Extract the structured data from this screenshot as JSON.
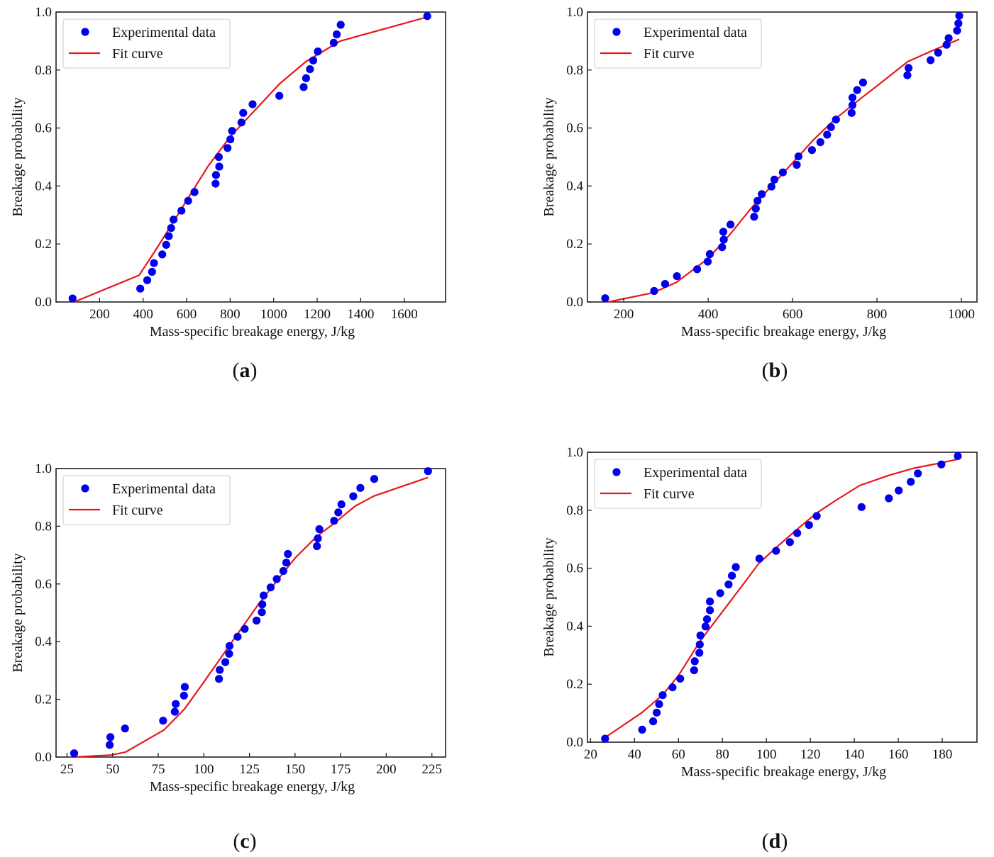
{
  "colors": {
    "points": "#0000ee",
    "fit_curve": "#e8161b",
    "axes": "#222222",
    "legend_border": "#d6d6d6"
  },
  "chart_data": [
    {
      "id": "a",
      "type": "scatter",
      "panel_label": "(a)",
      "panel_letter": "a",
      "xlabel": "Mass-specific breakage energy, J/kg",
      "ylabel": "Breakage probability",
      "xlim": [
        0,
        1790
      ],
      "ylim": [
        0,
        1.0
      ],
      "xticks": [
        200,
        400,
        600,
        800,
        1000,
        1200,
        1400,
        1600
      ],
      "xtick_labels": [
        "200",
        "400",
        "600",
        "800",
        "1000",
        "1200",
        "1400",
        "1600"
      ],
      "yticks": [
        0.0,
        0.2,
        0.4,
        0.6,
        0.8,
        1.0
      ],
      "ytick_labels": [
        "0.0",
        "0.2",
        "0.4",
        "0.6",
        "0.8",
        "1.0"
      ],
      "grid": false,
      "legend": {
        "position": "top-left",
        "entries": [
          "Experimental data",
          "Fit curve"
        ]
      },
      "series": [
        {
          "name": "Experimental data",
          "kind": "scatter",
          "points": [
            [
              76,
              0.012
            ],
            [
              387,
              0.046
            ],
            [
              419,
              0.075
            ],
            [
              441,
              0.104
            ],
            [
              450,
              0.134
            ],
            [
              488,
              0.164
            ],
            [
              506,
              0.197
            ],
            [
              518,
              0.227
            ],
            [
              529,
              0.255
            ],
            [
              540,
              0.284
            ],
            [
              576,
              0.315
            ],
            [
              607,
              0.349
            ],
            [
              636,
              0.379
            ],
            [
              733,
              0.408
            ],
            [
              735,
              0.438
            ],
            [
              750,
              0.467
            ],
            [
              748,
              0.5
            ],
            [
              788,
              0.531
            ],
            [
              801,
              0.561
            ],
            [
              809,
              0.59
            ],
            [
              852,
              0.619
            ],
            [
              860,
              0.652
            ],
            [
              903,
              0.682
            ],
            [
              1026,
              0.711
            ],
            [
              1138,
              0.741
            ],
            [
              1149,
              0.772
            ],
            [
              1167,
              0.803
            ],
            [
              1182,
              0.833
            ],
            [
              1203,
              0.864
            ],
            [
              1276,
              0.894
            ],
            [
              1290,
              0.923
            ],
            [
              1308,
              0.956
            ],
            [
              1706,
              0.986
            ]
          ]
        },
        {
          "name": "Fit curve",
          "kind": "line",
          "points": [
            [
              83,
              0.0
            ],
            [
              381,
              0.092
            ],
            [
              450,
              0.17
            ],
            [
              530,
              0.265
            ],
            [
              600,
              0.35
            ],
            [
              700,
              0.47
            ],
            [
              800,
              0.57
            ],
            [
              900,
              0.65
            ],
            [
              1028,
              0.753
            ],
            [
              1150,
              0.83
            ],
            [
              1306,
              0.9
            ],
            [
              1706,
              0.983
            ]
          ]
        }
      ]
    },
    {
      "id": "b",
      "type": "scatter",
      "panel_label": "(b)",
      "panel_letter": "b",
      "xlabel": "Mass-specific breakage energy, J/kg",
      "ylabel": "Breakage probability",
      "xlim": [
        114,
        1037
      ],
      "ylim": [
        0,
        1.0
      ],
      "xticks": [
        200,
        400,
        600,
        800,
        1000
      ],
      "xtick_labels": [
        "200",
        "400",
        "600",
        "800",
        "1000"
      ],
      "yticks": [
        0.0,
        0.2,
        0.4,
        0.6,
        0.8,
        1.0
      ],
      "ytick_labels": [
        "0.0",
        "0.2",
        "0.4",
        "0.6",
        "0.8",
        "1.0"
      ],
      "grid": false,
      "legend": {
        "position": "top-left",
        "entries": [
          "Experimental data",
          "Fit curve"
        ]
      },
      "series": [
        {
          "name": "Experimental data",
          "kind": "scatter",
          "points": [
            [
              156,
              0.013
            ],
            [
              272,
              0.038
            ],
            [
              298,
              0.062
            ],
            [
              326,
              0.089
            ],
            [
              374,
              0.113
            ],
            [
              399,
              0.139
            ],
            [
              404,
              0.165
            ],
            [
              433,
              0.189
            ],
            [
              437,
              0.215
            ],
            [
              436,
              0.242
            ],
            [
              453,
              0.267
            ],
            [
              509,
              0.294
            ],
            [
              513,
              0.322
            ],
            [
              517,
              0.349
            ],
            [
              527,
              0.372
            ],
            [
              550,
              0.398
            ],
            [
              557,
              0.422
            ],
            [
              577,
              0.447
            ],
            [
              610,
              0.473
            ],
            [
              614,
              0.502
            ],
            [
              646,
              0.524
            ],
            [
              666,
              0.551
            ],
            [
              682,
              0.577
            ],
            [
              691,
              0.603
            ],
            [
              703,
              0.629
            ],
            [
              740,
              0.652
            ],
            [
              742,
              0.679
            ],
            [
              742,
              0.705
            ],
            [
              753,
              0.731
            ],
            [
              767,
              0.757
            ],
            [
              872,
              0.782
            ],
            [
              875,
              0.807
            ],
            [
              927,
              0.834
            ],
            [
              945,
              0.86
            ],
            [
              965,
              0.887
            ],
            [
              970,
              0.91
            ],
            [
              990,
              0.936
            ],
            [
              993,
              0.961
            ],
            [
              995,
              0.987
            ]
          ]
        },
        {
          "name": "Fit curve",
          "kind": "line",
          "points": [
            [
              163,
              0.0
            ],
            [
              270,
              0.032
            ],
            [
              325,
              0.068
            ],
            [
              400,
              0.15
            ],
            [
              450,
              0.23
            ],
            [
              500,
              0.32
            ],
            [
              550,
              0.4
            ],
            [
              600,
              0.48
            ],
            [
              650,
              0.56
            ],
            [
              700,
              0.63
            ],
            [
              760,
              0.7
            ],
            [
              800,
              0.745
            ],
            [
              873,
              0.829
            ],
            [
              930,
              0.866
            ],
            [
              995,
              0.906
            ]
          ]
        }
      ]
    },
    {
      "id": "c",
      "type": "scatter",
      "panel_label": "(c)",
      "panel_letter": "c",
      "xlabel": "Mass-specific breakage energy, J/kg",
      "ylabel": "Breakage probability",
      "xlim": [
        19,
        232.5
      ],
      "ylim": [
        0,
        1.0
      ],
      "xticks": [
        25,
        50,
        75,
        100,
        125,
        150,
        175,
        200,
        225
      ],
      "xtick_labels": [
        "25",
        "50",
        "75",
        "100",
        "125",
        "150",
        "175",
        "200",
        "225"
      ],
      "yticks": [
        0.0,
        0.2,
        0.4,
        0.6,
        0.8,
        1.0
      ],
      "ytick_labels": [
        "0.0",
        "0.2",
        "0.4",
        "0.6",
        "0.8",
        "1.0"
      ],
      "grid": false,
      "legend": {
        "position": "top-left",
        "entries": [
          "Experimental data",
          "Fit curve"
        ]
      },
      "series": [
        {
          "name": "Experimental data",
          "kind": "scatter",
          "points": [
            [
              28.9,
              0.013
            ],
            [
              48.4,
              0.042
            ],
            [
              48.8,
              0.069
            ],
            [
              56.8,
              0.099
            ],
            [
              77.7,
              0.126
            ],
            [
              84.1,
              0.157
            ],
            [
              84.6,
              0.184
            ],
            [
              89.1,
              0.213
            ],
            [
              89.6,
              0.243
            ],
            [
              108.3,
              0.271
            ],
            [
              108.7,
              0.302
            ],
            [
              111.8,
              0.329
            ],
            [
              113.9,
              0.358
            ],
            [
              114.1,
              0.385
            ],
            [
              118.5,
              0.417
            ],
            [
              122.4,
              0.444
            ],
            [
              128.9,
              0.473
            ],
            [
              131.8,
              0.502
            ],
            [
              132.0,
              0.529
            ],
            [
              132.8,
              0.56
            ],
            [
              136.6,
              0.588
            ],
            [
              140.0,
              0.617
            ],
            [
              143.6,
              0.645
            ],
            [
              145.2,
              0.674
            ],
            [
              146.1,
              0.704
            ],
            [
              162.0,
              0.731
            ],
            [
              162.5,
              0.758
            ],
            [
              163.3,
              0.79
            ],
            [
              171.4,
              0.819
            ],
            [
              173.7,
              0.848
            ],
            [
              175.4,
              0.876
            ],
            [
              181.9,
              0.904
            ],
            [
              185.8,
              0.933
            ],
            [
              193.4,
              0.964
            ],
            [
              222.9,
              0.991
            ]
          ]
        },
        {
          "name": "Fit curve",
          "kind": "line",
          "points": [
            [
              29,
              0.0
            ],
            [
              49,
              0.007
            ],
            [
              57,
              0.017
            ],
            [
              78,
              0.093
            ],
            [
              89.5,
              0.167
            ],
            [
              100,
              0.26
            ],
            [
              110,
              0.35
            ],
            [
              120,
              0.44
            ],
            [
              130,
              0.53
            ],
            [
              140,
              0.61
            ],
            [
              150,
              0.69
            ],
            [
              162,
              0.765
            ],
            [
              171.4,
              0.81
            ],
            [
              183,
              0.87
            ],
            [
              193.3,
              0.905
            ],
            [
              222.9,
              0.969
            ]
          ]
        }
      ]
    },
    {
      "id": "d",
      "type": "scatter",
      "panel_label": "(d)",
      "panel_letter": "d",
      "xlabel": "Mass-specific breakage energy, J/kg",
      "ylabel": "Breakage probability",
      "xlim": [
        18.6,
        195.8
      ],
      "ylim": [
        0,
        1.0
      ],
      "xticks": [
        20,
        40,
        60,
        80,
        100,
        120,
        140,
        160,
        180
      ],
      "xtick_labels": [
        "20",
        "40",
        "60",
        "80",
        "100",
        "120",
        "140",
        "160",
        "180"
      ],
      "yticks": [
        0.0,
        0.2,
        0.4,
        0.6,
        0.8,
        1.0
      ],
      "ytick_labels": [
        "0.0",
        "0.2",
        "0.4",
        "0.6",
        "0.8",
        "1.0"
      ],
      "grid": false,
      "legend": {
        "position": "top-left",
        "entries": [
          "Experimental data",
          "Fit curve"
        ]
      },
      "series": [
        {
          "name": "Experimental data",
          "kind": "scatter",
          "points": [
            [
              26.6,
              0.012
            ],
            [
              43.5,
              0.043
            ],
            [
              48.5,
              0.072
            ],
            [
              50.1,
              0.102
            ],
            [
              51.2,
              0.131
            ],
            [
              52.8,
              0.162
            ],
            [
              57.3,
              0.189
            ],
            [
              60.8,
              0.219
            ],
            [
              67.1,
              0.248
            ],
            [
              67.4,
              0.279
            ],
            [
              69.5,
              0.308
            ],
            [
              69.7,
              0.337
            ],
            [
              70.0,
              0.368
            ],
            [
              72.3,
              0.399
            ],
            [
              73.0,
              0.424
            ],
            [
              74.3,
              0.455
            ],
            [
              74.3,
              0.485
            ],
            [
              79.0,
              0.514
            ],
            [
              82.8,
              0.544
            ],
            [
              84.3,
              0.574
            ],
            [
              86.1,
              0.604
            ],
            [
              96.8,
              0.633
            ],
            [
              104.4,
              0.66
            ],
            [
              110.7,
              0.69
            ],
            [
              114.0,
              0.721
            ],
            [
              119.4,
              0.749
            ],
            [
              122.9,
              0.78
            ],
            [
              143.3,
              0.811
            ],
            [
              155.7,
              0.841
            ],
            [
              160.2,
              0.868
            ],
            [
              165.7,
              0.898
            ],
            [
              168.9,
              0.927
            ],
            [
              179.6,
              0.958
            ],
            [
              187.1,
              0.987
            ]
          ]
        },
        {
          "name": "Fit curve",
          "kind": "line",
          "points": [
            [
              26.6,
              0.016
            ],
            [
              43.4,
              0.102
            ],
            [
              52.8,
              0.163
            ],
            [
              60,
              0.23
            ],
            [
              70,
              0.35
            ],
            [
              80,
              0.45
            ],
            [
              90,
              0.55
            ],
            [
              96.5,
              0.616
            ],
            [
              105,
              0.675
            ],
            [
              113.8,
              0.733
            ],
            [
              122.8,
              0.79
            ],
            [
              131.8,
              0.835
            ],
            [
              142.4,
              0.885
            ],
            [
              155.3,
              0.919
            ],
            [
              167,
              0.945
            ],
            [
              179.4,
              0.963
            ],
            [
              187.1,
              0.976
            ]
          ]
        }
      ]
    }
  ]
}
